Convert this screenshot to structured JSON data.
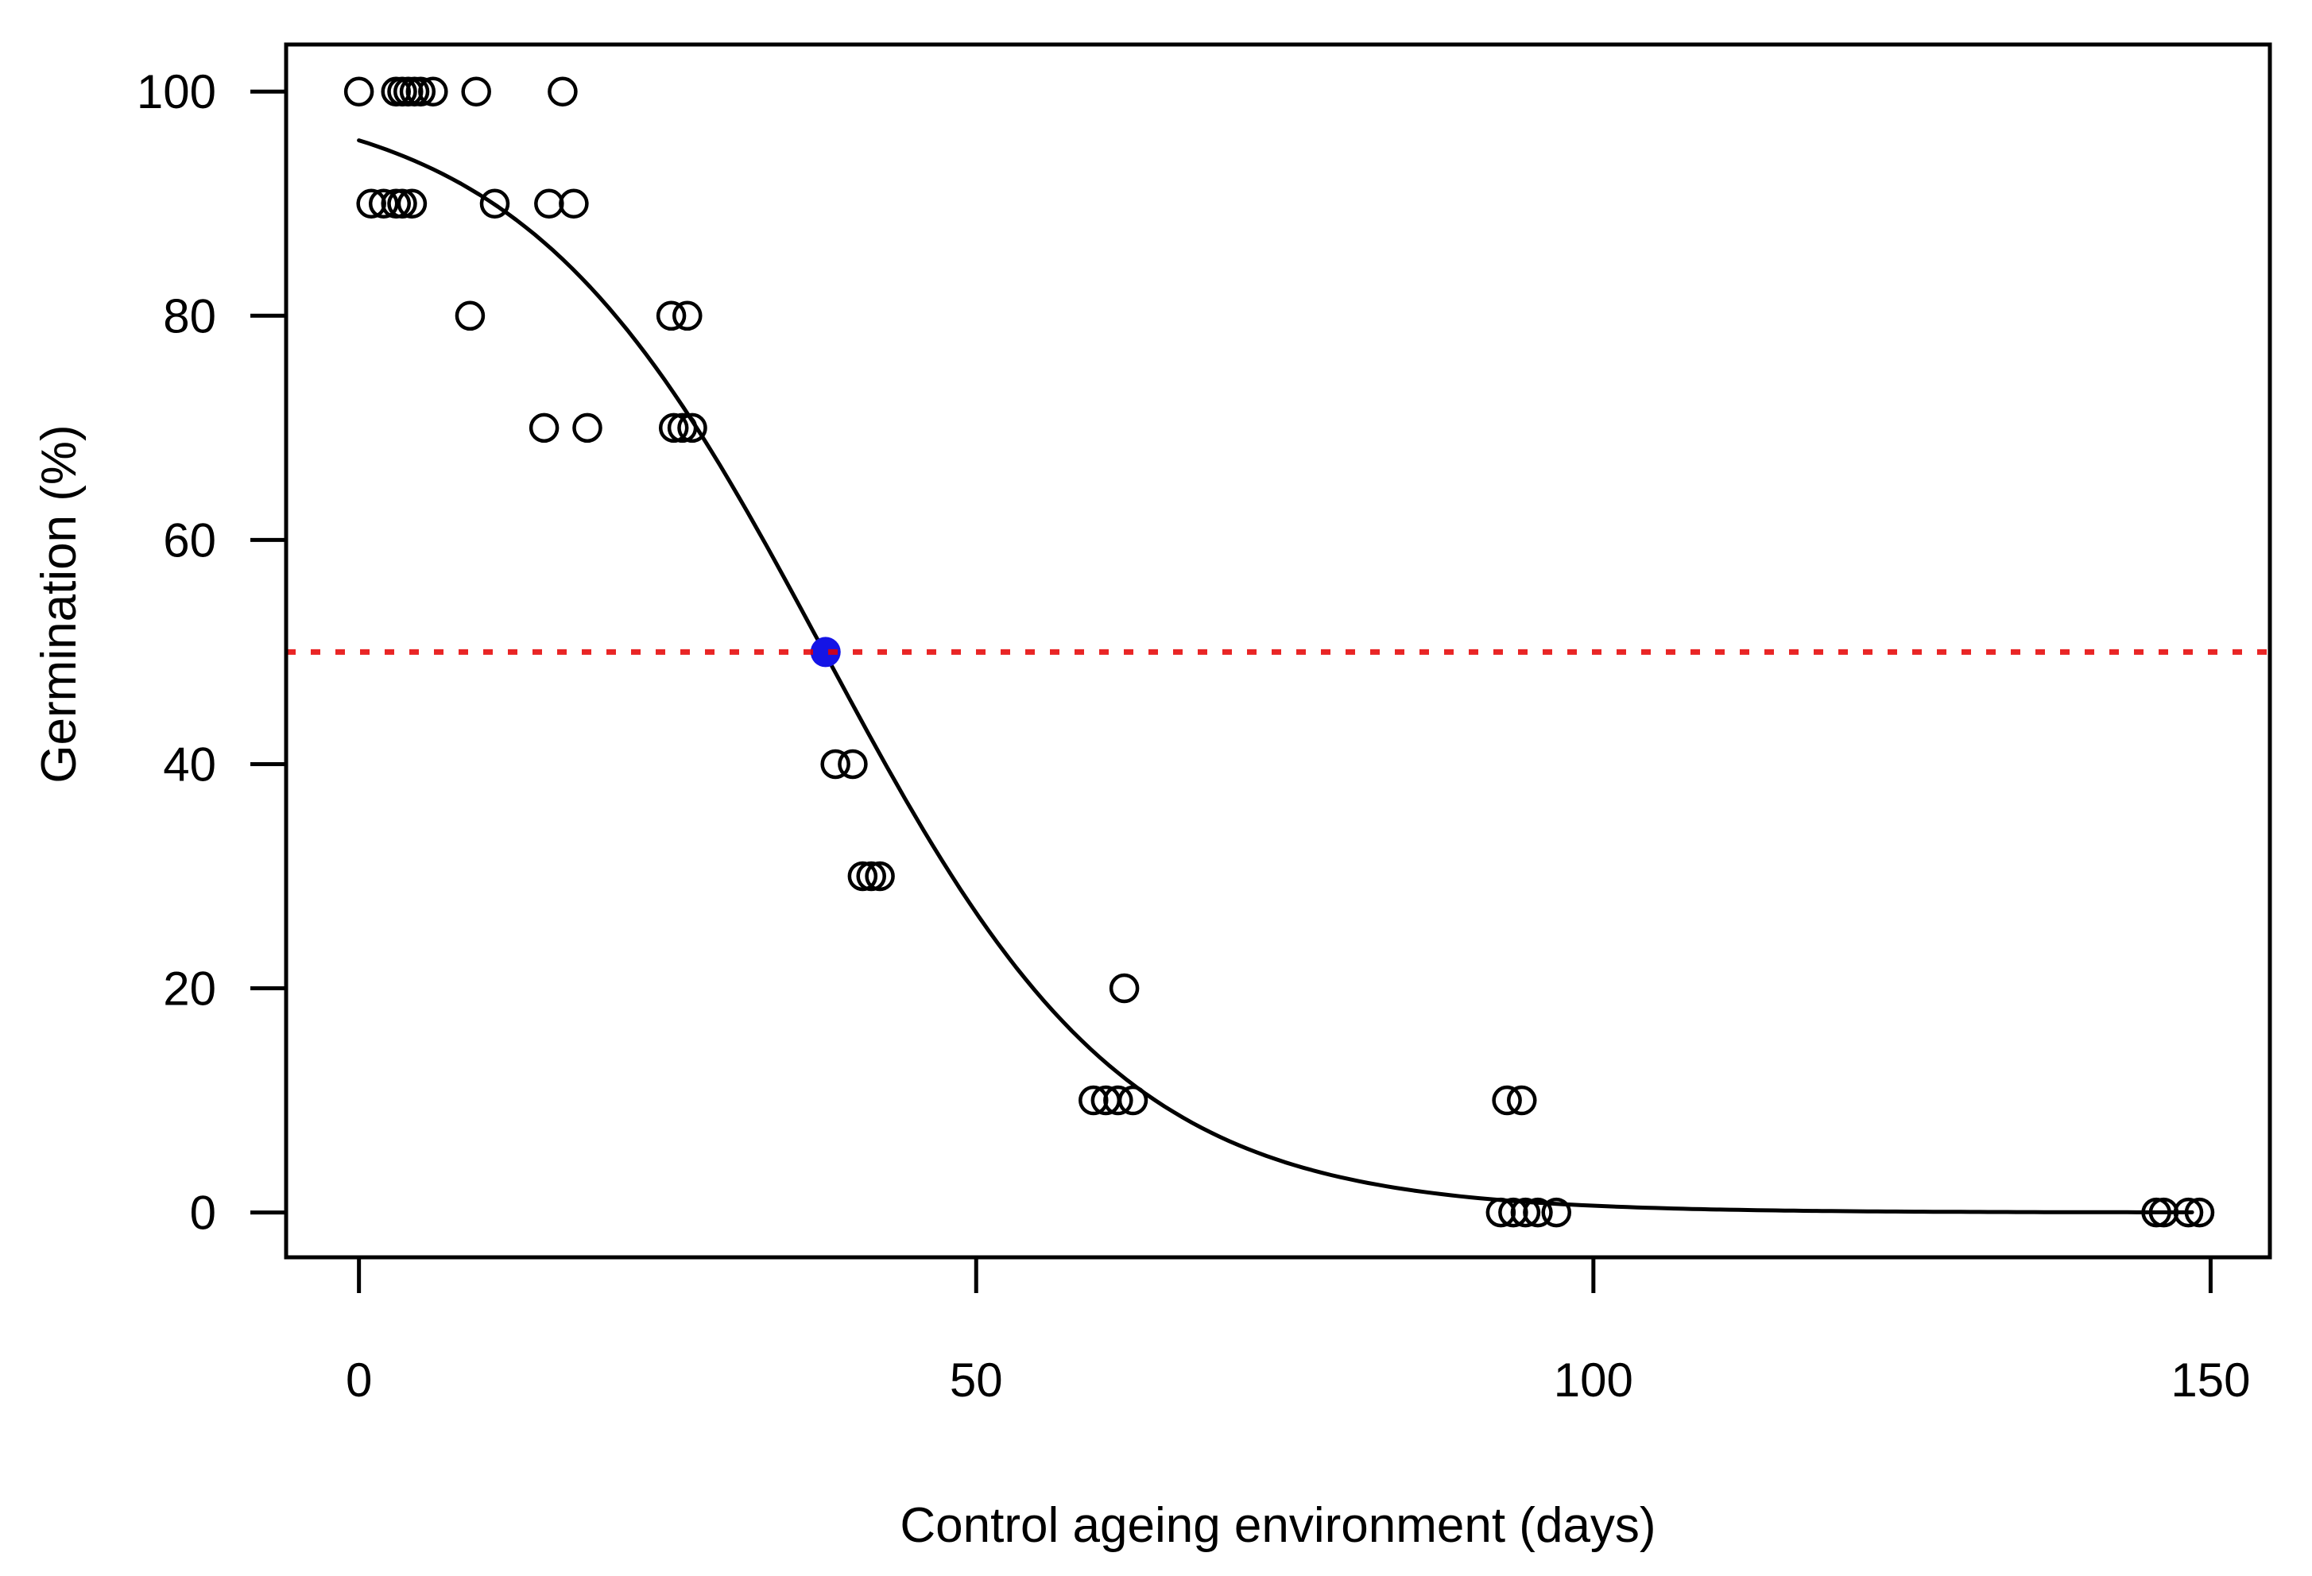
{
  "chart_data": {
    "type": "scatter",
    "title": "",
    "xlabel": "Control ageing environment (days)",
    "ylabel": "Germination (%)",
    "x_ticks": [
      0,
      50,
      100,
      150
    ],
    "y_ticks": [
      0,
      20,
      40,
      60,
      80,
      100
    ],
    "xlim": [
      -5.9,
      154.8
    ],
    "ylim": [
      -4.0,
      104.2
    ],
    "grid": false,
    "legend": "none",
    "point_style": {
      "marker": "open-circle",
      "color": "#000000"
    },
    "observations": [
      {
        "germination": 100,
        "days": [
          0,
          3,
          3.5,
          4,
          4.5,
          5,
          6,
          9.5,
          16.5
        ]
      },
      {
        "germination": 90,
        "days": [
          1,
          2,
          3,
          3.5,
          4.3,
          11,
          15.4,
          17.4
        ]
      },
      {
        "germination": 80,
        "days": [
          9,
          25.3,
          26.6
        ]
      },
      {
        "germination": 70,
        "days": [
          15,
          18.5,
          25.5,
          26.2,
          27
        ]
      },
      {
        "germination": 40,
        "days": [
          38.6,
          40
        ]
      },
      {
        "germination": 30,
        "days": [
          40.8,
          41.5,
          42.2
        ]
      },
      {
        "germination": 20,
        "days": [
          62
        ]
      },
      {
        "germination": 10,
        "days": [
          59.5,
          60.5,
          61.5,
          62.7,
          93,
          94.2
        ]
      },
      {
        "germination": 0,
        "days": [
          92.5,
          93.5,
          94.5,
          95.5,
          97,
          145.6,
          146.2,
          148.2,
          149.1
        ]
      }
    ],
    "fitted_curve": {
      "model": "logistic",
      "formula": "y = 100 / (1 + exp((x - 37.7) / 12.2))",
      "midpoint_p50_days": 37.7,
      "scale": 12.2,
      "asymptote": 100,
      "x_range": [
        0,
        149.2
      ],
      "color": "#000000"
    },
    "reference_line": {
      "y": 50,
      "style": "dotted",
      "color": "#e60000"
    },
    "p50_point": {
      "x": 37.8,
      "y": 50,
      "color": "#1414e6"
    }
  }
}
